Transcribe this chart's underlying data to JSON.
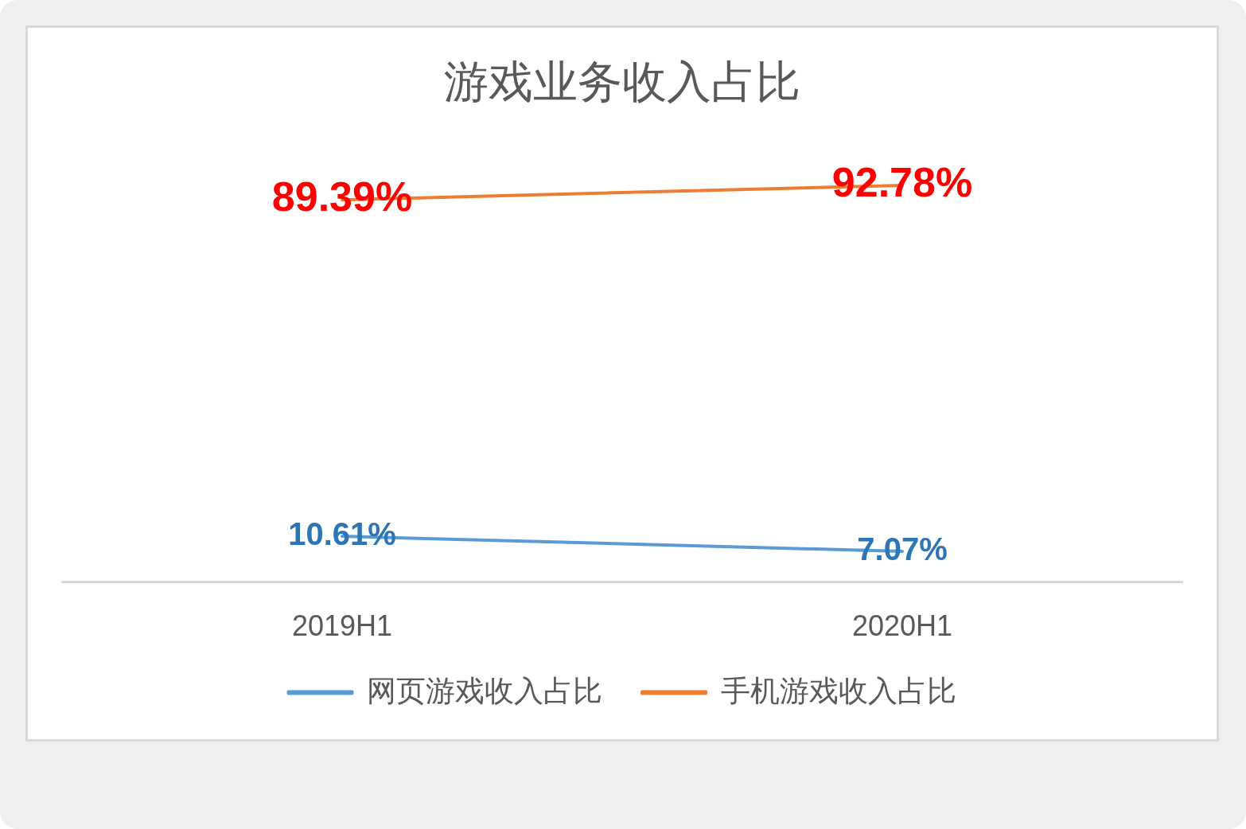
{
  "chart_data": {
    "type": "line",
    "title": "游戏业务收入占比",
    "categories": [
      "2019H1",
      "2020H1"
    ],
    "series": [
      {
        "name": "网页游戏收入占比",
        "color": "#5b9bd5",
        "values": [
          10.61,
          7.07
        ],
        "value_labels": [
          "10.61%",
          "7.07%"
        ]
      },
      {
        "name": "手机游戏收入占比",
        "color": "#ed7d31",
        "values": [
          89.39,
          92.78
        ],
        "value_labels": [
          "89.39%",
          "92.78%"
        ]
      }
    ],
    "tick_labels": "x",
    "grid": false,
    "legend": "bottom",
    "marker": "none",
    "line_style": "solid"
  }
}
